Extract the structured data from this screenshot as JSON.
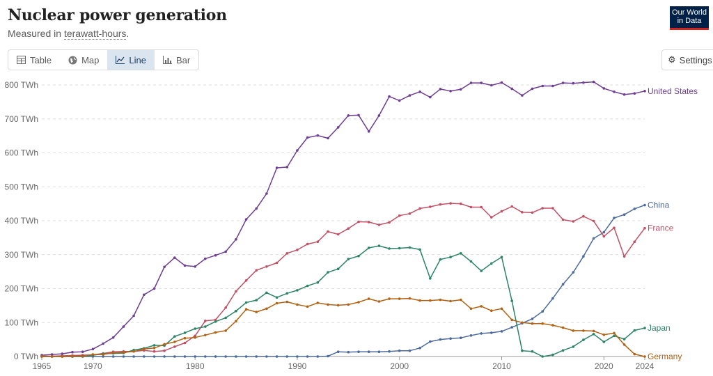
{
  "header": {
    "title": "Nuclear power generation",
    "subtitle_prefix": "Measured in ",
    "subtitle_unit": "terawatt-hours",
    "subtitle_suffix": "."
  },
  "logo": {
    "line1": "Our World",
    "line2": "in Data"
  },
  "tabs": [
    {
      "label": "Table",
      "icon": "table-icon",
      "active": false
    },
    {
      "label": "Map",
      "icon": "globe-icon",
      "active": false
    },
    {
      "label": "Line",
      "icon": "line-chart-icon",
      "active": true
    },
    {
      "label": "Bar",
      "icon": "bar-chart-icon",
      "active": false
    }
  ],
  "settings": {
    "label": "Settings",
    "icon": "gear-icon"
  },
  "chart_data": {
    "type": "line",
    "title": "Nuclear power generation",
    "ylabel": "",
    "xlabel": "",
    "ylim": [
      0,
      800
    ],
    "xlim": [
      1965,
      2024
    ],
    "y_ticks": [
      0,
      100,
      200,
      300,
      400,
      500,
      600,
      700,
      800
    ],
    "y_tick_labels": [
      "0 TWh",
      "100 TWh",
      "200 TWh",
      "300 TWh",
      "400 TWh",
      "500 TWh",
      "600 TWh",
      "700 TWh",
      "800 TWh"
    ],
    "x_ticks": [
      1965,
      1970,
      1980,
      1990,
      2000,
      2010,
      2020,
      2024
    ],
    "x_tick_labels": [
      "1965",
      "1970",
      "1980",
      "1990",
      "2000",
      "2010",
      "2020",
      "2024"
    ],
    "grid": true,
    "start_year": 1965,
    "series": [
      {
        "name": "United States",
        "color": "#6d3e91",
        "values": [
          4,
          6,
          8,
          13,
          14,
          22,
          38,
          56,
          88,
          120,
          182,
          200,
          264,
          291,
          268,
          265,
          288,
          298,
          309,
          345,
          404,
          436,
          480,
          556,
          558,
          607,
          645,
          651,
          643,
          675,
          710,
          711,
          663,
          710,
          766,
          754,
          769,
          780,
          764,
          788,
          782,
          787,
          806,
          806,
          799,
          807,
          789,
          769,
          789,
          797,
          797,
          806,
          805,
          807,
          809,
          790,
          780,
          772,
          775,
          782
        ]
      },
      {
        "name": "China",
        "color": "#4c6a9c",
        "values": [
          0,
          0,
          0,
          0,
          0,
          0,
          0,
          0,
          0,
          0,
          0,
          0,
          0,
          0,
          0,
          0,
          0,
          0,
          0,
          0,
          0,
          0,
          0,
          0,
          0,
          0,
          0,
          0,
          1,
          14,
          13,
          14,
          14,
          14,
          15,
          17,
          17,
          25,
          44,
          50,
          53,
          55,
          62,
          68,
          70,
          74,
          86,
          98,
          111,
          133,
          171,
          213,
          248,
          295,
          348,
          366,
          408,
          418,
          435,
          446
        ]
      },
      {
        "name": "France",
        "color": "#c15065",
        "values": [
          1,
          1,
          2,
          3,
          4,
          5,
          9,
          14,
          15,
          15,
          18,
          15,
          17,
          29,
          40,
          61,
          105,
          108,
          144,
          192,
          224,
          254,
          265,
          276,
          304,
          314,
          331,
          338,
          368,
          360,
          377,
          397,
          396,
          388,
          395,
          415,
          421,
          436,
          441,
          448,
          451,
          450,
          440,
          440,
          410,
          428,
          442,
          425,
          424,
          437,
          437,
          403,
          398,
          413,
          399,
          354,
          379,
          295,
          338,
          378
        ]
      },
      {
        "name": "Japan",
        "color": "#2c8465",
        "values": [
          0,
          0,
          0,
          0,
          0,
          4,
          8,
          9,
          10,
          19,
          24,
          33,
          32,
          59,
          70,
          82,
          88,
          103,
          114,
          134,
          159,
          166,
          188,
          174,
          186,
          195,
          208,
          218,
          248,
          258,
          287,
          296,
          320,
          326,
          318,
          319,
          321,
          315,
          230,
          286,
          293,
          304,
          280,
          252,
          274,
          293,
          164,
          17,
          15,
          0,
          5,
          18,
          29,
          49,
          66,
          43,
          61,
          51,
          77,
          84
        ]
      },
      {
        "name": "Germany",
        "color": "#b16214",
        "values": [
          0,
          0,
          0,
          1,
          1,
          6,
          6,
          11,
          12,
          15,
          22,
          25,
          36,
          43,
          54,
          56,
          63,
          71,
          76,
          104,
          139,
          131,
          141,
          157,
          161,
          153,
          147,
          158,
          153,
          151,
          153,
          160,
          170,
          162,
          170,
          170,
          171,
          165,
          165,
          167,
          163,
          167,
          141,
          148,
          135,
          141,
          108,
          100,
          97,
          97,
          92,
          85,
          76,
          76,
          75,
          64,
          69,
          35,
          7,
          0
        ]
      }
    ]
  }
}
